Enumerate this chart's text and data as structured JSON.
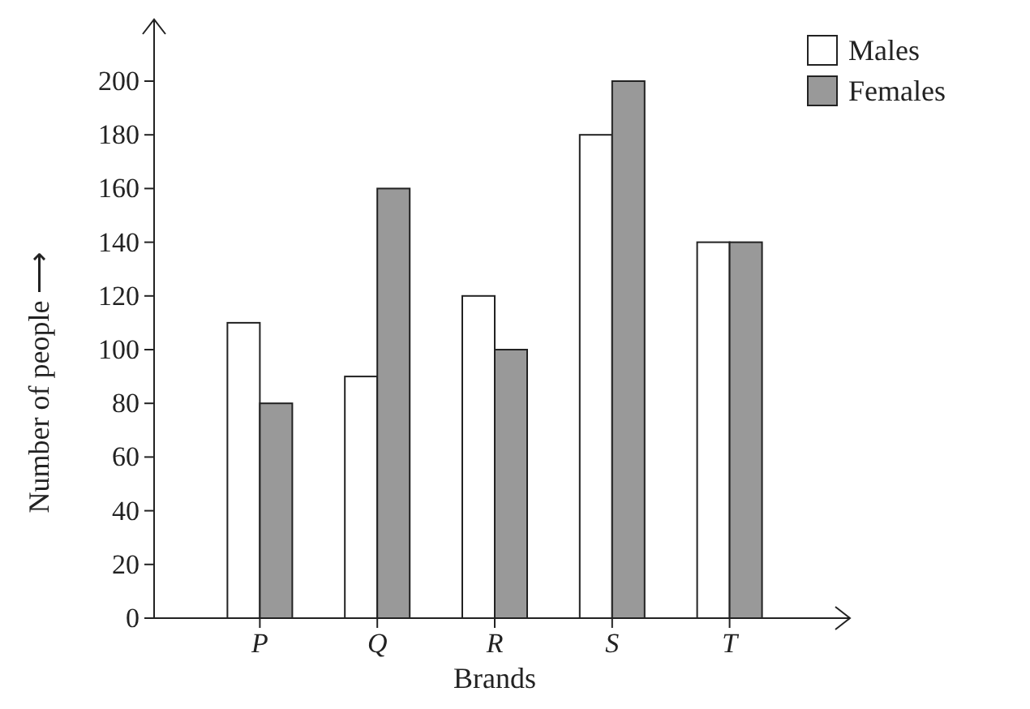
{
  "chart_data": {
    "type": "bar",
    "xlabel": "Brands",
    "ylabel": "Number of people ⟶",
    "categories": [
      "P",
      "Q",
      "R",
      "S",
      "T"
    ],
    "series": [
      {
        "name": "Males",
        "color": "#ffffff",
        "values": [
          110,
          90,
          120,
          180,
          140
        ]
      },
      {
        "name": "Females",
        "color": "#999999",
        "values": [
          80,
          160,
          100,
          200,
          140
        ]
      }
    ],
    "ylim": [
      0,
      200
    ],
    "yticks": [
      0,
      20,
      40,
      60,
      80,
      100,
      120,
      140,
      160,
      180,
      200
    ],
    "grid": false,
    "legend": "top right"
  }
}
